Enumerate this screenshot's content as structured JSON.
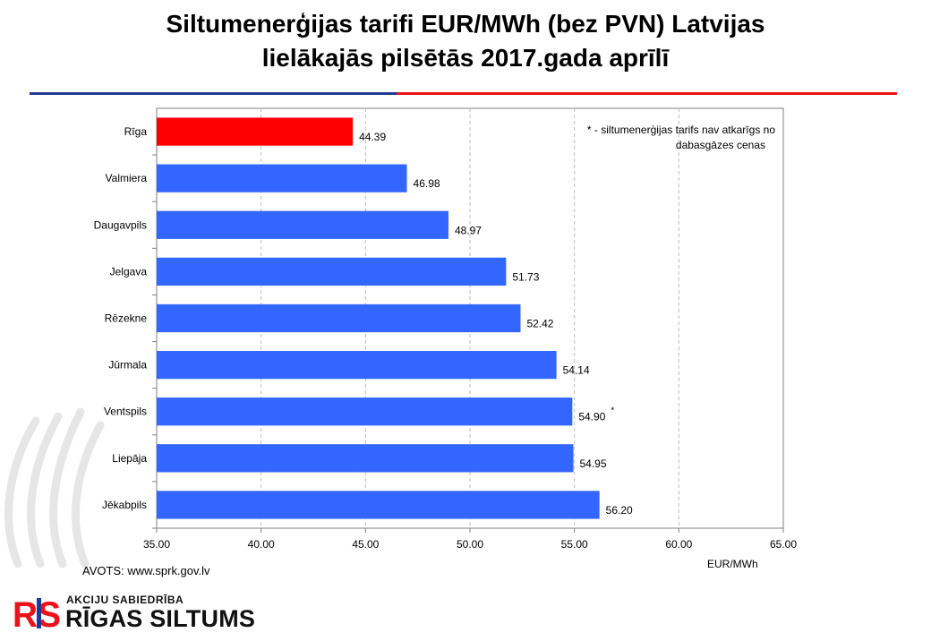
{
  "header": {
    "title_line1": "Siltumenerģijas tarifi EUR/MWh (bez PVN) Latvijas",
    "title_line2": "lielākajās pilsētās 2017.gada aprīlī"
  },
  "footer": {
    "source": "AVOTS: www.sprk.gov.lv",
    "logo_subtitle": "AKCIJU SABIEDRĪBA",
    "logo_name": "RĪGAS SILTUMS",
    "logo_mark": "RS"
  },
  "colors": {
    "highlight": "#ff0000",
    "bar": "#3366ff",
    "rule_blue": "#1f3a93",
    "rule_red": "#e8131b"
  },
  "chart_data": {
    "type": "bar",
    "orientation": "horizontal",
    "categories": [
      "Rīga",
      "Valmiera",
      "Daugavpils",
      "Jelgava",
      "Rēzekne",
      "Jūrmala",
      "Ventspils",
      "Liepāja",
      "Jēkabpils"
    ],
    "values": [
      44.39,
      46.98,
      48.97,
      51.73,
      52.42,
      54.14,
      54.9,
      54.95,
      56.2
    ],
    "data_labels": [
      "44.39",
      "46.98",
      "48.97",
      "51.73",
      "52.42",
      "54.14",
      "54.90",
      "54.95",
      "56.20"
    ],
    "highlight_index": 0,
    "marked_index": 6,
    "marker": "*",
    "xlim": [
      35,
      65
    ],
    "xticks": [
      35,
      40,
      45,
      50,
      55,
      60,
      65
    ],
    "xtick_labels": [
      "35.00",
      "40.00",
      "45.00",
      "50.00",
      "55.00",
      "60.00",
      "65.00"
    ],
    "xlabel": "EUR/MWh",
    "ylabel": "",
    "annotation_line1": "* - siltumenerģijas tarifs nav atkarīgs no",
    "annotation_line2": "dabasgāzes cenas",
    "grid": "vertical dashed"
  }
}
